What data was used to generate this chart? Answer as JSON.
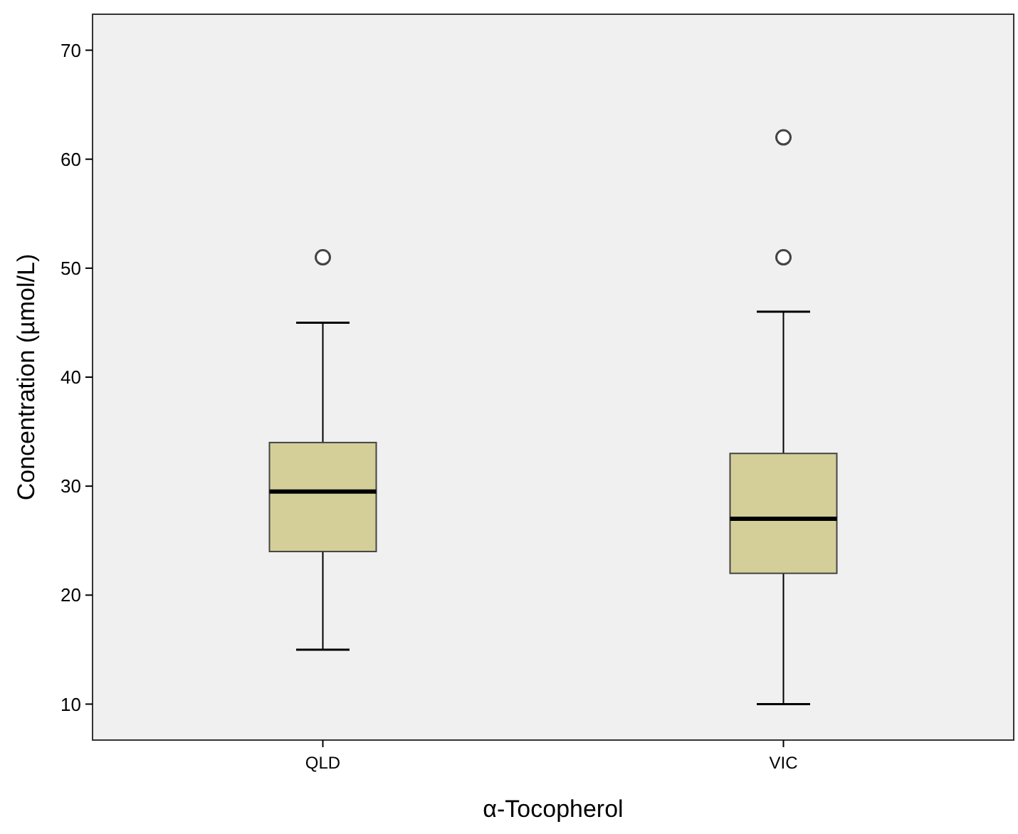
{
  "chart_data": {
    "type": "box",
    "xlabel": "α-Tocopherol",
    "ylabel": "Concentration (µmol/L)",
    "categories": [
      "QLD",
      "VIC"
    ],
    "color": "#d4cf99",
    "ylim": [
      6.7,
      73.3
    ],
    "yticks": [
      10,
      20,
      30,
      40,
      50,
      60,
      70
    ],
    "grid": false,
    "boxes": [
      {
        "low": 15,
        "q1": 24,
        "median": 29.5,
        "q3": 34,
        "high": 45,
        "outliers": [
          51
        ]
      },
      {
        "low": 10,
        "q1": 22,
        "median": 27,
        "q3": 33,
        "high": 46,
        "outliers": [
          51,
          62
        ]
      }
    ]
  }
}
